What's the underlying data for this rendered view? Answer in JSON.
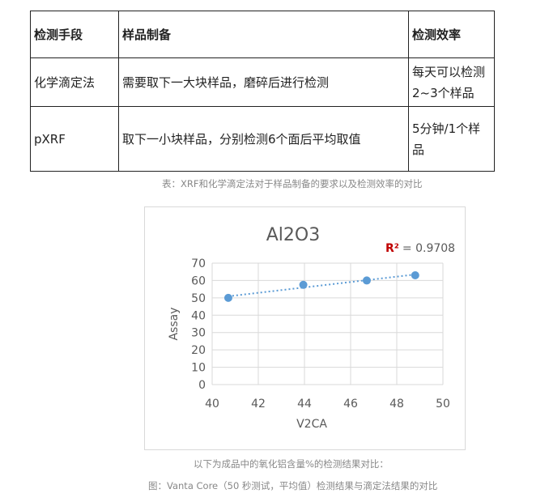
{
  "table": {
    "headers": [
      "检测手段",
      "样品制备",
      "检测效率"
    ],
    "rows": [
      [
        "化学滴定法",
        "需要取下一大块样品，磨碎后进行检测",
        "每天可以检测2~3个样品"
      ],
      [
        "pXRF",
        "取下一小块样品，分别检测6个面后平均取值",
        "5分钟/1个样品"
      ]
    ],
    "caption": "表：XRF和化学滴定法对于样品制备的要求以及检测效率的对比"
  },
  "chart_data": {
    "type": "scatter",
    "title": "Al2O3",
    "xlabel": "V2CA",
    "ylabel": "Assay",
    "xlim": [
      40,
      50
    ],
    "ylim": [
      0,
      70
    ],
    "xticks": [
      "40",
      "42",
      "44",
      "46",
      "48",
      "50"
    ],
    "yticks": [
      "0",
      "10",
      "20",
      "30",
      "40",
      "50",
      "60",
      "70"
    ],
    "points": [
      {
        "x": 40.7,
        "y": 50
      },
      {
        "x": 43.95,
        "y": 57.5
      },
      {
        "x": 46.7,
        "y": 60
      },
      {
        "x": 48.8,
        "y": 63
      }
    ],
    "trendline": "linear dotted",
    "r2_label": "R²",
    "r2_value": "= 0.9708",
    "grid": true,
    "colors": {
      "marker": "#5b9bd5",
      "r2": "#c00000"
    }
  },
  "captions": {
    "line1": "以下为成品中的氧化铝含量%的检测结果对比：",
    "line2": "图：Vanta Core（50 秒测试，平均值）检测结果与滴定法结果的对比"
  }
}
